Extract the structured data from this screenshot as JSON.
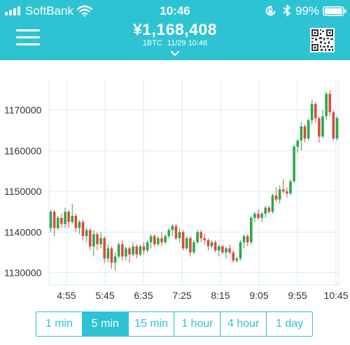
{
  "status_bar": {
    "carrier": "SoftBank",
    "time": "10:46",
    "battery": "99%"
  },
  "header": {
    "price": "¥1,168,408",
    "unit": "1BTC",
    "timestamp": "11/29 10:46",
    "menu_icon": "hamburger-menu-icon",
    "qr_icon": "qr-code-icon",
    "dropdown_icon": "chevron-down-icon"
  },
  "colors": {
    "accent": "#2ec3d3",
    "up": "#2aa84a",
    "down": "#e0483b",
    "grid": "#d6eaf5"
  },
  "chart_data": {
    "type": "candlestick",
    "title": "",
    "xlabel": "",
    "ylabel": "",
    "grid": true,
    "ylim": [
      1127000,
      1177500
    ],
    "y_ticks": [
      "1130000",
      "1140000",
      "1150000",
      "1160000",
      "1170000"
    ],
    "y_tick_values": [
      1130000,
      1140000,
      1150000,
      1160000,
      1170000
    ],
    "x_ticks": [
      "4:55",
      "5:45",
      "6:35",
      "7:25",
      "8:15",
      "9:05",
      "9:55",
      "10:45"
    ],
    "interval": "5 min",
    "candles_ohlc": [
      [
        1141000,
        1145500,
        1140000,
        1145000
      ],
      [
        1145000,
        1145500,
        1139000,
        1141000
      ],
      [
        1141000,
        1144000,
        1140500,
        1143500
      ],
      [
        1143500,
        1144500,
        1141000,
        1142000
      ],
      [
        1142000,
        1146000,
        1141000,
        1145000
      ],
      [
        1145000,
        1145500,
        1141000,
        1142500
      ],
      [
        1142500,
        1147000,
        1142000,
        1144000
      ],
      [
        1144000,
        1144500,
        1140000,
        1141000
      ],
      [
        1141000,
        1143000,
        1139500,
        1142500
      ],
      [
        1142500,
        1143000,
        1138000,
        1139000
      ],
      [
        1139000,
        1141000,
        1137500,
        1140500
      ],
      [
        1140500,
        1141000,
        1135500,
        1136500
      ],
      [
        1136500,
        1140500,
        1134000,
        1139500
      ],
      [
        1139500,
        1140000,
        1135500,
        1137000
      ],
      [
        1137000,
        1140000,
        1136000,
        1138500
      ],
      [
        1138500,
        1139000,
        1132500,
        1133500
      ],
      [
        1133500,
        1137000,
        1132500,
        1136000
      ],
      [
        1136000,
        1136500,
        1131000,
        1132500
      ],
      [
        1132500,
        1135000,
        1130500,
        1134000
      ],
      [
        1134000,
        1137500,
        1133500,
        1137000
      ],
      [
        1137000,
        1138000,
        1133000,
        1134000
      ],
      [
        1134000,
        1136500,
        1133000,
        1136000
      ],
      [
        1136000,
        1136500,
        1132500,
        1134500
      ],
      [
        1134500,
        1137500,
        1134000,
        1136500
      ],
      [
        1136500,
        1137000,
        1133500,
        1134500
      ],
      [
        1134500,
        1137000,
        1134000,
        1136500
      ],
      [
        1136500,
        1137500,
        1134500,
        1135500
      ],
      [
        1135500,
        1138000,
        1135000,
        1137500
      ],
      [
        1137500,
        1139500,
        1136000,
        1139000
      ],
      [
        1139000,
        1139500,
        1136500,
        1137000
      ],
      [
        1137000,
        1139000,
        1136500,
        1138500
      ],
      [
        1138500,
        1140000,
        1136500,
        1137500
      ],
      [
        1137500,
        1139500,
        1137000,
        1139000
      ],
      [
        1139000,
        1141000,
        1138500,
        1140500
      ],
      [
        1140500,
        1142000,
        1139000,
        1141500
      ],
      [
        1141500,
        1142000,
        1138000,
        1138500
      ],
      [
        1138500,
        1141000,
        1137500,
        1140000
      ],
      [
        1140000,
        1140500,
        1135500,
        1136000
      ],
      [
        1136000,
        1139000,
        1135500,
        1138500
      ],
      [
        1138500,
        1139000,
        1134000,
        1135000
      ],
      [
        1135000,
        1138000,
        1134500,
        1137500
      ],
      [
        1137500,
        1140500,
        1137000,
        1140000
      ],
      [
        1140000,
        1140500,
        1137500,
        1138500
      ],
      [
        1138500,
        1139500,
        1137000,
        1138000
      ],
      [
        1138000,
        1138500,
        1135500,
        1136500
      ],
      [
        1136500,
        1138000,
        1136000,
        1137500
      ],
      [
        1137500,
        1138000,
        1135000,
        1135500
      ],
      [
        1135500,
        1137000,
        1134000,
        1136500
      ],
      [
        1136500,
        1137000,
        1134500,
        1135000
      ],
      [
        1135000,
        1136500,
        1133500,
        1136000
      ],
      [
        1136000,
        1137000,
        1134500,
        1135000
      ],
      [
        1135000,
        1135500,
        1132500,
        1133000
      ],
      [
        1133000,
        1134000,
        1132500,
        1133500
      ],
      [
        1133500,
        1138000,
        1133000,
        1137500
      ],
      [
        1137500,
        1139500,
        1136000,
        1139000
      ],
      [
        1139000,
        1139500,
        1136500,
        1137500
      ],
      [
        1137500,
        1144000,
        1137000,
        1143500
      ],
      [
        1143500,
        1145000,
        1142500,
        1144500
      ],
      [
        1144500,
        1145500,
        1143000,
        1143500
      ],
      [
        1143500,
        1145000,
        1142500,
        1144500
      ],
      [
        1144500,
        1146500,
        1143500,
        1146000
      ],
      [
        1146000,
        1146500,
        1144500,
        1145000
      ],
      [
        1145000,
        1149500,
        1144500,
        1149000
      ],
      [
        1149000,
        1151000,
        1147500,
        1148000
      ],
      [
        1148000,
        1151500,
        1147000,
        1150500
      ],
      [
        1150500,
        1153000,
        1149500,
        1150000
      ],
      [
        1150000,
        1151000,
        1148500,
        1149500
      ],
      [
        1149500,
        1153000,
        1149000,
        1152500
      ],
      [
        1152500,
        1161500,
        1152000,
        1161000
      ],
      [
        1161000,
        1163000,
        1159500,
        1162500
      ],
      [
        1162500,
        1167000,
        1160000,
        1166000
      ],
      [
        1166000,
        1166500,
        1162000,
        1163000
      ],
      [
        1163000,
        1168000,
        1162500,
        1167500
      ],
      [
        1167500,
        1172500,
        1166500,
        1171500
      ],
      [
        1171500,
        1172000,
        1167000,
        1168000
      ],
      [
        1168000,
        1168500,
        1162000,
        1163500
      ],
      [
        1163500,
        1170000,
        1163000,
        1168500
      ],
      [
        1168500,
        1174500,
        1167500,
        1174000
      ],
      [
        1174000,
        1175000,
        1168500,
        1169500
      ],
      [
        1169500,
        1170000,
        1162500,
        1163000
      ],
      [
        1163000,
        1168500,
        1162500,
        1168000
      ]
    ]
  },
  "timeframes": [
    {
      "label": "1 min",
      "active": false
    },
    {
      "label": "5 min",
      "active": true
    },
    {
      "label": "15 min",
      "active": false
    },
    {
      "label": "1 hour",
      "active": false
    },
    {
      "label": "4 hour",
      "active": false
    },
    {
      "label": "1 day",
      "active": false
    }
  ]
}
